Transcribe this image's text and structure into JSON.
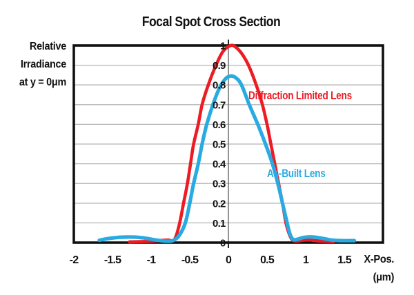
{
  "title": "Focal Spot Cross Section",
  "y_axis_label_lines": [
    "Relative",
    "Irradiance",
    "at y = 0μm"
  ],
  "x_axis_label_lines": [
    "X-Pos.",
    "(μm)"
  ],
  "colors": {
    "red": "#ed1c24",
    "blue": "#29abe2",
    "grid": "#b3b3b3",
    "axis_line": "#7a7a7a",
    "axis_tick": "#111111",
    "frame": "#111111",
    "text": "#111111"
  },
  "chart_data": {
    "type": "line",
    "title": "Focal Spot Cross Section",
    "xlabel": "X-Pos. (μm)",
    "ylabel": "Relative Irradiance at y = 0μm",
    "xlim": [
      -2,
      2
    ],
    "ylim": [
      0,
      1
    ],
    "grid": "horizontal gridlines every 0.1, single vertical axis line at x=0",
    "legend_position": "inline text labels beside curves",
    "xticks": [
      -2,
      -1.5,
      -1,
      -0.5,
      0,
      0.5,
      1,
      1.5
    ],
    "xtick_labels": [
      "-2",
      "-1.5",
      "-1",
      "-0.5",
      "0",
      "0.5",
      "1",
      "1.5"
    ],
    "yticks": [
      1,
      0.9,
      0.8,
      0.7,
      0.6,
      0.5,
      0.4,
      0.3,
      0.2,
      0.1,
      0
    ],
    "ytick_labels": [
      "1",
      "0.9",
      "0.8",
      "0.7",
      "0.6",
      "0.5",
      "0.4",
      "0.3",
      "0.2",
      "0.1",
      "0"
    ],
    "series": [
      {
        "name": "Diffraction Limited Lens",
        "color": "#ed1c24",
        "stroke_width": 4.6,
        "peak": 1.0,
        "peak_x": 0.03,
        "points": [
          [
            -1.28,
            0.004
          ],
          [
            -1.15,
            0.005
          ],
          [
            -1.0,
            0.007
          ],
          [
            -0.85,
            0.012
          ],
          [
            -0.77,
            0.013
          ],
          [
            -0.72,
            0.008
          ],
          [
            -0.68,
            0.03
          ],
          [
            -0.63,
            0.1
          ],
          [
            -0.58,
            0.2
          ],
          [
            -0.53,
            0.3
          ],
          [
            -0.49,
            0.4
          ],
          [
            -0.45,
            0.5
          ],
          [
            -0.39,
            0.6
          ],
          [
            -0.34,
            0.7
          ],
          [
            -0.26,
            0.8
          ],
          [
            -0.16,
            0.9
          ],
          [
            -0.07,
            0.97
          ],
          [
            0.03,
            1.0
          ],
          [
            0.1,
            0.99
          ],
          [
            0.18,
            0.955
          ],
          [
            0.26,
            0.9
          ],
          [
            0.36,
            0.8
          ],
          [
            0.44,
            0.7
          ],
          [
            0.5,
            0.6
          ],
          [
            0.55,
            0.5
          ],
          [
            0.6,
            0.4
          ],
          [
            0.65,
            0.3
          ],
          [
            0.7,
            0.2
          ],
          [
            0.745,
            0.1
          ],
          [
            0.79,
            0.04
          ],
          [
            0.83,
            0.013
          ],
          [
            0.89,
            0.008
          ],
          [
            0.96,
            0.012
          ],
          [
            1.03,
            0.014
          ],
          [
            1.11,
            0.011
          ],
          [
            1.22,
            0.007
          ],
          [
            1.36,
            0.005
          ]
        ]
      },
      {
        "name": "As-Built Lens",
        "color": "#29abe2",
        "stroke_width": 5.2,
        "peak": 0.845,
        "peak_x": 0.03,
        "points": [
          [
            -1.67,
            0.012
          ],
          [
            -1.58,
            0.019
          ],
          [
            -1.47,
            0.025
          ],
          [
            -1.35,
            0.028
          ],
          [
            -1.22,
            0.028
          ],
          [
            -1.1,
            0.024
          ],
          [
            -0.98,
            0.016
          ],
          [
            -0.88,
            0.01
          ],
          [
            -0.8,
            0.007
          ],
          [
            -0.73,
            0.009
          ],
          [
            -0.66,
            0.025
          ],
          [
            -0.6,
            0.06
          ],
          [
            -0.55,
            0.11
          ],
          [
            -0.5,
            0.2
          ],
          [
            -0.45,
            0.3
          ],
          [
            -0.39,
            0.4
          ],
          [
            -0.34,
            0.5
          ],
          [
            -0.28,
            0.6
          ],
          [
            -0.2,
            0.7
          ],
          [
            -0.12,
            0.78
          ],
          [
            -0.04,
            0.83
          ],
          [
            0.03,
            0.845
          ],
          [
            0.1,
            0.835
          ],
          [
            0.17,
            0.8
          ],
          [
            0.27,
            0.7
          ],
          [
            0.38,
            0.6
          ],
          [
            0.48,
            0.5
          ],
          [
            0.57,
            0.4
          ],
          [
            0.64,
            0.3
          ],
          [
            0.7,
            0.2
          ],
          [
            0.76,
            0.1
          ],
          [
            0.8,
            0.04
          ],
          [
            0.84,
            0.016
          ],
          [
            0.9,
            0.018
          ],
          [
            0.97,
            0.026
          ],
          [
            1.05,
            0.029
          ],
          [
            1.14,
            0.027
          ],
          [
            1.24,
            0.02
          ],
          [
            1.34,
            0.013
          ],
          [
            1.46,
            0.01
          ],
          [
            1.63,
            0.01
          ]
        ]
      }
    ]
  }
}
